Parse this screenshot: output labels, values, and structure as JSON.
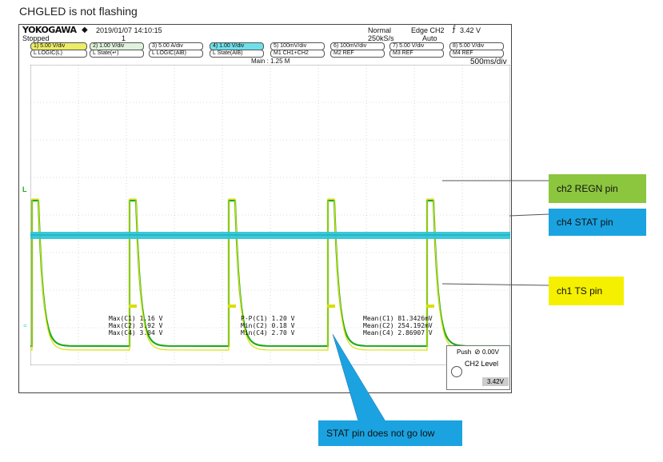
{
  "caption": "CHGLED is not flashing",
  "scope": {
    "brand": "YOKOGAWA",
    "status": "Stopped",
    "datetime": "2019/01/07  14:10:15",
    "count": "1",
    "mode": "Normal",
    "rate": "250kS/s",
    "trigger": "Edge CH2",
    "trigger_level": "3.42 V",
    "trigger_mode": "Auto",
    "main": "Main : 1.25 M",
    "timebase": "500ms/div",
    "channels_row1": [
      "1) 5.00 V/div",
      "2) 1.00 V/div",
      "3) 5.00 A/div",
      "4) 1.00 V/div",
      "5)  100mV/div",
      "6)  100mV/div",
      "7) 5.00 V/div",
      "8) 5.00 V/div"
    ],
    "channels_row2": [
      "L  LOGIC(L)",
      "L  State(↵)",
      "L  LOGIC(AlB)",
      "L  State(AlB)",
      "M1 CH1+CH2",
      "M2 REF",
      "M3 REF",
      "M4 REF"
    ],
    "meas_col1": [
      "Max(C1)   1.16  V",
      "Max(C2)   3.92  V",
      "Max(C4)   3.04  V"
    ],
    "meas_col2": [
      "P-P(C1)  1.20  V",
      "Min(C2)  0.18  V",
      "Min(C4)  2.70  V"
    ],
    "meas_col3": [
      "Mean(C1)  81.3426mV",
      "Mean(C2)  254.192mV",
      "Mean(C4)  2.86907 V"
    ],
    "level_box": {
      "push": "Push",
      "push_value": "0.00V",
      "title": "CH2 Level",
      "value": "3.42V"
    },
    "marker_L": "L"
  },
  "callouts": {
    "ch2": {
      "text": "ch2    REGN pin",
      "color": "#8cc63f"
    },
    "ch4": {
      "text": "ch4    STAT pin",
      "color": "#1aa3e0"
    },
    "ch1": {
      "text": "ch1     TS pin",
      "color": "#f5f000"
    },
    "stat": {
      "text": "STAT pin does not go low",
      "color": "#1aa3e0"
    }
  },
  "colors": {
    "ch1": "#d8e000",
    "ch2": "#22aa22",
    "ch4": "#2ec6d8",
    "grid": "#bbbbbb"
  }
}
